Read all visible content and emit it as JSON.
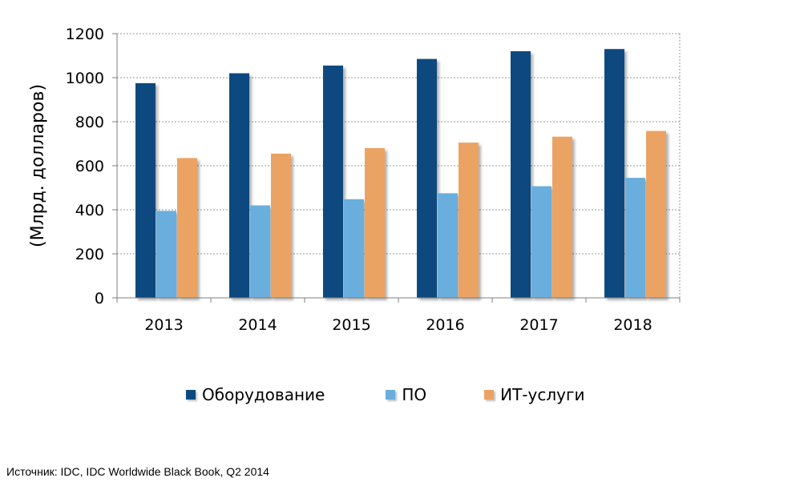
{
  "chart_data": {
    "type": "bar",
    "categories": [
      "2013",
      "2014",
      "2015",
      "2016",
      "2017",
      "2018"
    ],
    "series": [
      {
        "name": "Оборудование",
        "color": "#0a4a7e",
        "values": [
          975,
          1020,
          1055,
          1085,
          1120,
          1130
        ]
      },
      {
        "name": "ПО",
        "color": "#6aaedd",
        "values": [
          395,
          420,
          448,
          475,
          507,
          545
        ]
      },
      {
        "name": "ИТ-услуги",
        "color": "#eba364",
        "values": [
          635,
          655,
          680,
          705,
          732,
          758
        ]
      }
    ],
    "ylabel": "(Млрд. долларов)",
    "xlabel": "",
    "ylim": [
      0,
      1200
    ],
    "yticks": [
      0,
      200,
      400,
      600,
      800,
      1000,
      1200
    ],
    "grid": true,
    "legend_position": "bottom"
  },
  "source_text": "Источник: IDC, IDC Worldwide Black Book, Q2 2014"
}
